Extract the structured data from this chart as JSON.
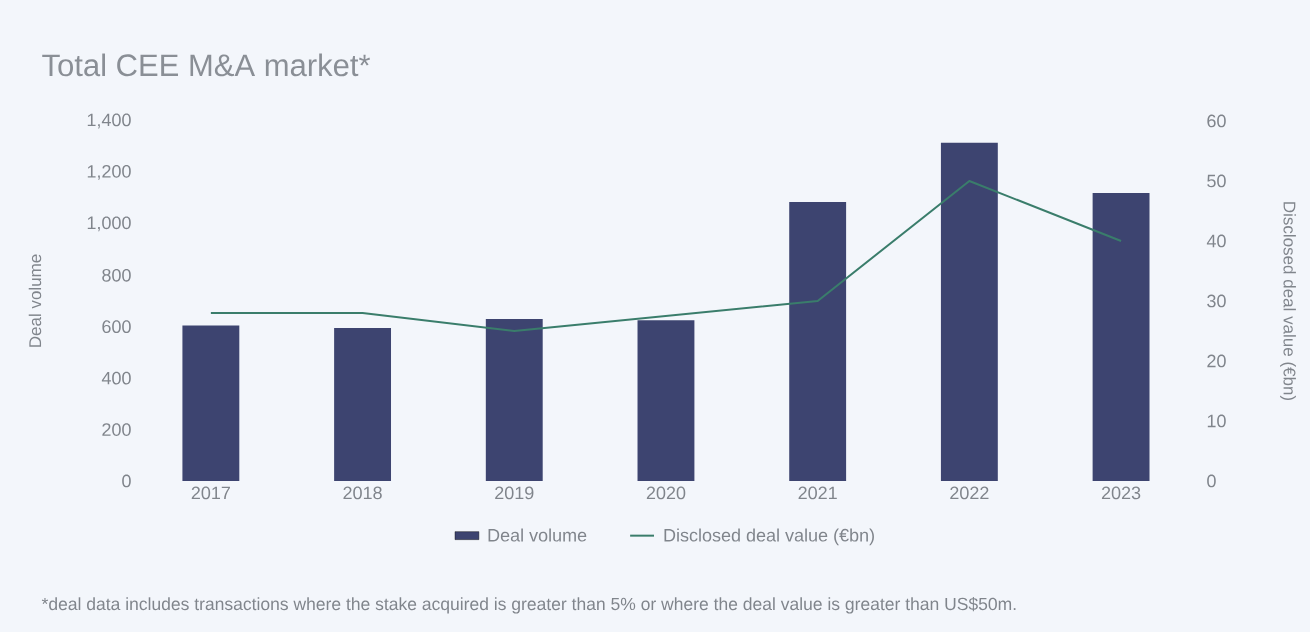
{
  "chart_data": {
    "type": "bar",
    "title": "Total CEE M&A market*",
    "categories": [
      "2017",
      "2018",
      "2019",
      "2020",
      "2021",
      "2022",
      "2023"
    ],
    "series": [
      {
        "name": "Deal volume",
        "color": "#3d4470",
        "values": [
          605,
          595,
          630,
          625,
          1085,
          1315,
          1120
        ]
      },
      {
        "name": "Disclosed deal value (€bn)",
        "type": "line",
        "axis": "y2",
        "color": "#3a7d6b",
        "values": [
          28,
          28,
          25,
          null,
          30,
          50,
          40
        ]
      }
    ],
    "ylabel": "Deal volume",
    "y2label": "Disclosed deal value (€bn)",
    "ylim": [
      0,
      1400
    ],
    "yticks": [
      0,
      200,
      400,
      600,
      800,
      {
        "value": 1000,
        "label": "1,000"
      },
      {
        "value": 1200,
        "label": "1,200"
      },
      {
        "value": 1400,
        "label": "1,400"
      }
    ],
    "y2lim": [
      0,
      60
    ],
    "y2ticks": [
      0,
      10,
      20,
      30,
      40,
      50,
      60
    ],
    "legend": "bottom",
    "grid": false,
    "annotations": [
      "*deal data includes transactions where the stake acquired is greater than 5% or where the deal value is greater than US$50m."
    ]
  }
}
